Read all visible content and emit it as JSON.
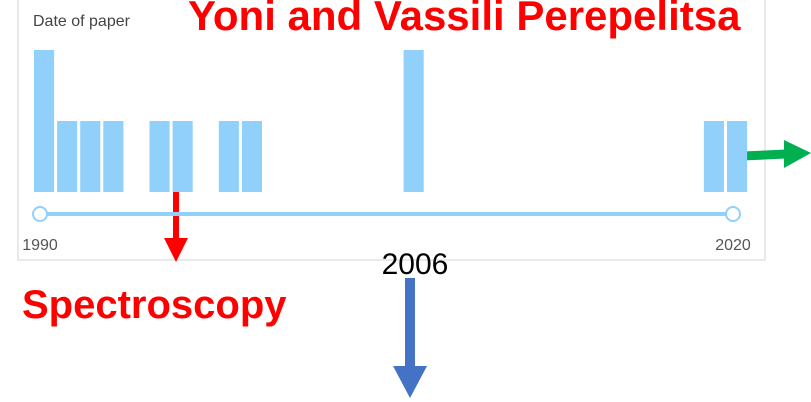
{
  "chart_data": {
    "type": "bar",
    "title": "Yoni and Vassili Perepelitsa",
    "x_label": "Date of paper",
    "x": [
      1990,
      1991,
      1992,
      1993,
      1995,
      1996,
      1998,
      1999,
      2006,
      2019,
      2020
    ],
    "values": [
      2,
      1,
      1,
      1,
      1,
      1,
      1,
      1,
      2,
      1,
      1
    ],
    "color": "#90d0fb",
    "xlim": [
      1990,
      2020
    ],
    "xticks": [
      1990,
      2020
    ],
    "annotations": [
      "2006",
      "Spectroscopy"
    ]
  }
}
